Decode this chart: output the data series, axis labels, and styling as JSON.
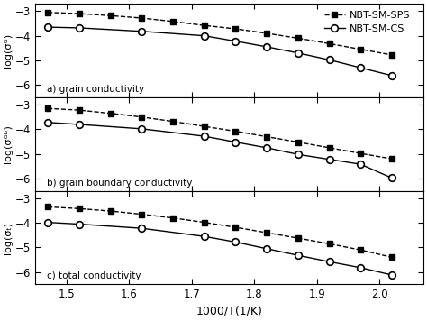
{
  "x_label": "1000/T(1/K)",
  "xlim": [
    1.45,
    2.07
  ],
  "xticks": [
    1.5,
    1.6,
    1.7,
    1.8,
    1.9,
    2.0
  ],
  "panel_a": {
    "ylabel": "log(σᴳ)",
    "label": "a) grain conductivity",
    "ylim": [
      -6.5,
      -2.7
    ],
    "yticks": [
      -6,
      -5,
      -4,
      -3
    ],
    "sps_x": [
      1.47,
      1.52,
      1.57,
      1.62,
      1.67,
      1.72,
      1.77,
      1.82,
      1.87,
      1.92,
      1.97,
      2.02
    ],
    "sps_y": [
      -3.05,
      -3.1,
      -3.18,
      -3.28,
      -3.42,
      -3.58,
      -3.72,
      -3.9,
      -4.1,
      -4.32,
      -4.55,
      -4.78
    ],
    "cs_x": [
      1.47,
      1.52,
      1.62,
      1.72,
      1.77,
      1.82,
      1.87,
      1.92,
      1.97,
      2.02
    ],
    "cs_y": [
      -3.65,
      -3.68,
      -3.82,
      -4.0,
      -4.22,
      -4.45,
      -4.7,
      -4.98,
      -5.3,
      -5.62
    ]
  },
  "panel_b": {
    "ylabel": "log(σᴳᵇ)",
    "label": "b) grain boundary conductivity",
    "ylim": [
      -6.5,
      -2.7
    ],
    "yticks": [
      -6,
      -5,
      -4,
      -3
    ],
    "sps_x": [
      1.47,
      1.52,
      1.57,
      1.62,
      1.67,
      1.72,
      1.77,
      1.82,
      1.87,
      1.92,
      1.97,
      2.02
    ],
    "sps_y": [
      -3.15,
      -3.22,
      -3.35,
      -3.5,
      -3.68,
      -3.88,
      -4.08,
      -4.3,
      -4.52,
      -4.75,
      -4.98,
      -5.2
    ],
    "cs_x": [
      1.47,
      1.52,
      1.62,
      1.72,
      1.77,
      1.82,
      1.87,
      1.92,
      1.97,
      2.02
    ],
    "cs_y": [
      -3.72,
      -3.8,
      -3.98,
      -4.28,
      -4.52,
      -4.75,
      -5.02,
      -5.22,
      -5.42,
      -5.98
    ]
  },
  "panel_c": {
    "ylabel": "log(σₜ)",
    "label": "c) total conductivity",
    "ylim": [
      -6.5,
      -2.7
    ],
    "yticks": [
      -6,
      -5,
      -4,
      -3
    ],
    "sps_x": [
      1.47,
      1.52,
      1.57,
      1.62,
      1.67,
      1.72,
      1.77,
      1.82,
      1.87,
      1.92,
      1.97,
      2.02
    ],
    "sps_y": [
      -3.35,
      -3.42,
      -3.52,
      -3.65,
      -3.8,
      -3.98,
      -4.18,
      -4.4,
      -4.62,
      -4.85,
      -5.1,
      -5.4
    ],
    "cs_x": [
      1.47,
      1.52,
      1.62,
      1.72,
      1.77,
      1.82,
      1.87,
      1.92,
      1.97,
      2.02
    ],
    "cs_y": [
      -3.98,
      -4.05,
      -4.22,
      -4.55,
      -4.78,
      -5.05,
      -5.32,
      -5.58,
      -5.82,
      -6.12
    ]
  },
  "legend_labels": [
    "NBT-SM-SPS",
    "NBT-SM-CS"
  ],
  "sps_color": "#000000",
  "cs_color": "#000000",
  "bg_color": "#ffffff"
}
